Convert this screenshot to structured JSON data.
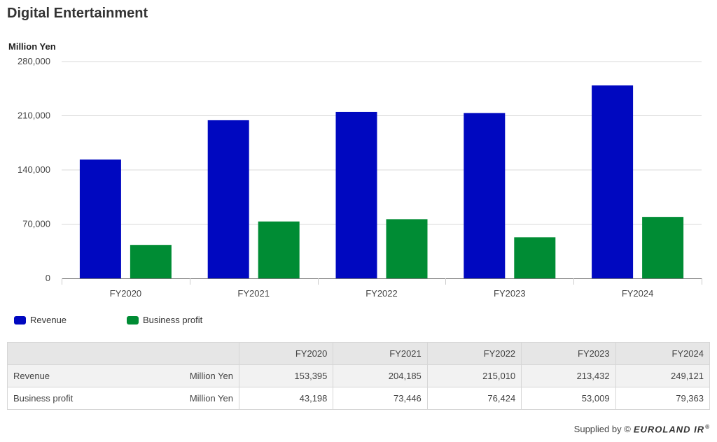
{
  "title": "Digital Entertainment",
  "unit_label": "Million Yen",
  "chart_data": {
    "type": "bar",
    "title": "Digital Entertainment",
    "ylabel": "Million Yen",
    "categories": [
      "FY2020",
      "FY2021",
      "FY2022",
      "FY2023",
      "FY2024"
    ],
    "ylim": [
      0,
      280000
    ],
    "yticks": [
      0,
      70000,
      140000,
      210000,
      280000
    ],
    "ytick_labels": [
      "0",
      "70,000",
      "140,000",
      "210,000",
      "280,000"
    ],
    "grid": true,
    "legend_position": "bottom-left",
    "series": [
      {
        "name": "Revenue",
        "color": "#0008c0",
        "values": [
          153395,
          204185,
          215010,
          213432,
          249121
        ]
      },
      {
        "name": "Business profit",
        "color": "#008c34",
        "values": [
          43198,
          73446,
          76424,
          53009,
          79363
        ]
      }
    ]
  },
  "legend": [
    {
      "label": "Revenue",
      "color": "#0008c0"
    },
    {
      "label": "Business profit",
      "color": "#008c34"
    }
  ],
  "table": {
    "headers": [
      "FY2020",
      "FY2021",
      "FY2022",
      "FY2023",
      "FY2024"
    ],
    "rows": [
      {
        "label": "Revenue",
        "unit": "Million Yen",
        "values": [
          "153,395",
          "204,185",
          "215,010",
          "213,432",
          "249,121"
        ]
      },
      {
        "label": "Business profit",
        "unit": "Million Yen",
        "values": [
          "43,198",
          "73,446",
          "76,424",
          "53,009",
          "79,363"
        ]
      }
    ]
  },
  "footer": {
    "supplied_by": "Supplied by ©",
    "brand": "EUROLAND IR",
    "reg": "®"
  }
}
